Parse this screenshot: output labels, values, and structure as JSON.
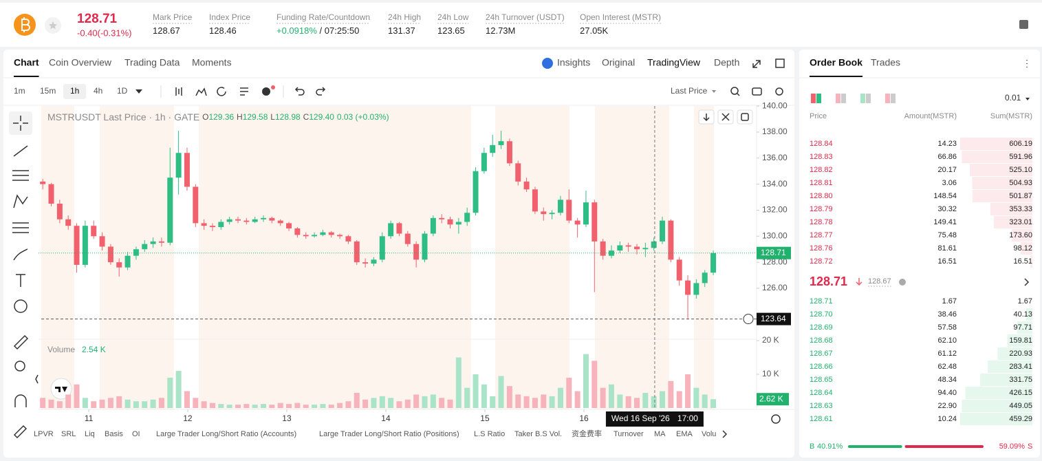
{
  "header": {
    "price": "128.71",
    "change": "-0.40(-0.31%)",
    "stats": [
      {
        "label": "Mark Price",
        "value": "128.67"
      },
      {
        "label": "Index Price",
        "value": "128.46"
      },
      {
        "label": "Funding Rate/Countdown",
        "value": "+0.0918%",
        "value2": "/ 07:25:50"
      },
      {
        "label": "24h High",
        "value": "131.37"
      },
      {
        "label": "24h Low",
        "value": "123.65"
      },
      {
        "label": "24h Turnover (USDT)",
        "value": "12.73M"
      },
      {
        "label": "Open Interest (MSTR)",
        "value": "27.05K"
      }
    ]
  },
  "tabs": [
    "Chart",
    "Coin Overview",
    "Trading Data",
    "Moments"
  ],
  "views": [
    "Insights",
    "Original",
    "TradingView",
    "Depth"
  ],
  "intervals": [
    "1m",
    "15m",
    "1h",
    "4h",
    "1D"
  ],
  "price_type": "Last Price",
  "indicators": [
    "LPVR",
    "SRL",
    "Liq",
    "Basis",
    "OI",
    "Large Trader Long/Short Ratio (Accounts)",
    "Large Trader Long/Short Ratio (Positions)",
    "L.S Ratio",
    "Taker B.S Vol.",
    "资金费率",
    "Turnover",
    "MA",
    "EMA",
    "Volu"
  ],
  "chart_data": {
    "type": "candlestick",
    "title": "MSTRUSDT Last Price · 1h · GATE",
    "legend": [
      {
        "k": "O",
        "v": "129.36"
      },
      {
        "k": "H",
        "v": "129.58"
      },
      {
        "k": "L",
        "v": "128.98"
      },
      {
        "k": "C",
        "v": "129.40"
      }
    ],
    "legend_change": "0.03 (+0.03%)",
    "up_color": "#2ebd85",
    "down_color": "#f0616d",
    "grid": false,
    "xlim": [
      0,
      84.6
    ],
    "xticks": [
      {
        "value": 5.92,
        "label": "11"
      },
      {
        "value": 17.58,
        "label": "12"
      },
      {
        "value": 29.25,
        "label": "13"
      },
      {
        "value": 40.92,
        "label": "14"
      },
      {
        "value": 52.59,
        "label": "15"
      },
      {
        "value": 64.26,
        "label": "16"
      }
    ],
    "ylim": [
      122.14,
      140.06
    ],
    "yticks": [
      {
        "value": 126,
        "label": "126.00"
      },
      {
        "value": 128,
        "label": "128.00"
      },
      {
        "value": 130,
        "label": "130.00"
      },
      {
        "value": 132,
        "label": "132.00"
      },
      {
        "value": 134,
        "label": "134.00"
      },
      {
        "value": 136,
        "label": "136.00"
      },
      {
        "value": 138,
        "label": "138.00"
      },
      {
        "value": 140,
        "label": "140.00"
      }
    ],
    "last_price": 128.71,
    "marker_price": 123.64,
    "crosshair": {
      "x": 72.6,
      "date": "Wed 16 Sep '26",
      "time": "17:00"
    },
    "volume_title": "Volume",
    "volume_legend": "2.54 K",
    "volume_last": {
      "value": 2620,
      "label": "2.62 K"
    },
    "vylim": [
      0,
      20000
    ],
    "vyticks": [
      {
        "value": 10000,
        "label": "10 K"
      },
      {
        "value": 20000,
        "label": "20 K"
      }
    ],
    "candles": [
      [
        134.2,
        134.4,
        133.6,
        134.0
      ],
      [
        134.0,
        134.1,
        132.3,
        132.5
      ],
      [
        132.5,
        132.8,
        131.0,
        131.3
      ],
      [
        131.3,
        131.6,
        130.5,
        130.8
      ],
      [
        130.8,
        131.0,
        127.2,
        127.8
      ],
      [
        127.8,
        131.2,
        127.6,
        130.8
      ],
      [
        130.8,
        131.2,
        129.8,
        130.0
      ],
      [
        130.0,
        130.3,
        128.9,
        129.2
      ],
      [
        129.2,
        129.4,
        127.8,
        128.0
      ],
      [
        128.0,
        128.3,
        126.9,
        127.6
      ],
      [
        127.6,
        128.8,
        127.4,
        128.5
      ],
      [
        128.5,
        129.2,
        128.2,
        129.0
      ],
      [
        129.0,
        129.7,
        128.8,
        129.4
      ],
      [
        129.4,
        129.9,
        129.1,
        129.6
      ],
      [
        129.6,
        129.9,
        129.2,
        129.5
      ],
      [
        129.5,
        136.8,
        129.3,
        134.5
      ],
      [
        134.5,
        138.1,
        133.2,
        136.4
      ],
      [
        136.4,
        136.8,
        133.5,
        133.8
      ],
      [
        133.8,
        134.0,
        130.7,
        131.0
      ],
      [
        131.0,
        131.3,
        130.5,
        130.8
      ],
      [
        130.8,
        131.0,
        130.4,
        130.7
      ],
      [
        130.7,
        131.3,
        130.5,
        131.1
      ],
      [
        131.1,
        131.5,
        130.9,
        131.3
      ],
      [
        131.3,
        131.5,
        131.0,
        131.2
      ],
      [
        131.2,
        131.4,
        130.9,
        131.1
      ],
      [
        131.1,
        131.5,
        131.0,
        131.3
      ],
      [
        131.3,
        131.6,
        131.1,
        131.4
      ],
      [
        131.4,
        131.5,
        131.0,
        131.2
      ],
      [
        131.2,
        131.3,
        130.8,
        131.0
      ],
      [
        131.0,
        131.1,
        130.4,
        130.6
      ],
      [
        130.6,
        130.7,
        129.9,
        130.1
      ],
      [
        130.1,
        130.3,
        129.8,
        130.0
      ],
      [
        130.0,
        130.3,
        129.9,
        130.1
      ],
      [
        130.1,
        130.5,
        130.0,
        130.3
      ],
      [
        130.3,
        130.4,
        129.9,
        130.1
      ],
      [
        130.1,
        130.2,
        129.8,
        130.0
      ],
      [
        130.0,
        130.1,
        129.4,
        129.6
      ],
      [
        129.6,
        129.7,
        127.8,
        128.0
      ],
      [
        128.0,
        128.3,
        127.6,
        127.9
      ],
      [
        127.9,
        128.4,
        127.7,
        128.2
      ],
      [
        128.2,
        130.3,
        128.0,
        130.0
      ],
      [
        130.0,
        131.2,
        129.8,
        131.0
      ],
      [
        131.0,
        131.1,
        130.0,
        130.2
      ],
      [
        130.2,
        130.4,
        129.2,
        129.4
      ],
      [
        129.4,
        129.6,
        127.6,
        128.2
      ],
      [
        128.2,
        130.4,
        128.0,
        130.2
      ],
      [
        130.2,
        131.6,
        130.0,
        131.4
      ],
      [
        131.4,
        131.7,
        131.0,
        131.3
      ],
      [
        131.3,
        131.5,
        130.6,
        130.9
      ],
      [
        130.9,
        131.4,
        130.2,
        131.1
      ],
      [
        131.1,
        132.2,
        130.8,
        131.8
      ],
      [
        131.8,
        135.3,
        131.6,
        135.0
      ],
      [
        135.0,
        136.8,
        134.8,
        136.4
      ],
      [
        136.4,
        137.8,
        136.1,
        137.0
      ],
      [
        137.0,
        138.1,
        136.7,
        137.3
      ],
      [
        137.3,
        137.5,
        135.4,
        135.6
      ],
      [
        135.6,
        135.8,
        133.9,
        134.2
      ],
      [
        134.2,
        134.5,
        133.4,
        133.6
      ],
      [
        133.6,
        133.8,
        131.7,
        131.9
      ],
      [
        131.9,
        132.2,
        131.2,
        131.7
      ],
      [
        131.7,
        132.0,
        131.3,
        131.8
      ],
      [
        131.8,
        133.1,
        131.6,
        132.8
      ],
      [
        132.8,
        133.6,
        131.0,
        131.2
      ],
      [
        131.2,
        131.4,
        129.9,
        130.9
      ],
      [
        130.9,
        133.5,
        130.7,
        132.6
      ],
      [
        132.6,
        132.8,
        125.7,
        129.6
      ],
      [
        129.6,
        129.8,
        128.2,
        128.5
      ],
      [
        128.5,
        129.3,
        128.3,
        128.9
      ],
      [
        128.9,
        129.6,
        128.7,
        129.3
      ],
      [
        129.3,
        129.5,
        128.8,
        129.2
      ],
      [
        129.2,
        129.4,
        128.6,
        129.0
      ],
      [
        129.0,
        129.5,
        128.4,
        129.1
      ],
      [
        129.1,
        129.9,
        128.9,
        129.6
      ],
      [
        129.6,
        131.5,
        129.4,
        131.2
      ],
      [
        131.2,
        131.3,
        128.0,
        128.2
      ],
      [
        128.2,
        128.4,
        126.2,
        126.6
      ],
      [
        126.6,
        127.0,
        123.64,
        125.5
      ],
      [
        125.5,
        126.7,
        125.2,
        126.4
      ],
      [
        126.4,
        127.4,
        126.1,
        127.2
      ],
      [
        127.2,
        128.9,
        127.0,
        128.71
      ]
    ],
    "volume": [
      3000,
      2500,
      2000,
      4000,
      7000,
      3000,
      2000,
      2500,
      3000,
      3500,
      2500,
      2000,
      2000,
      2500,
      3000,
      9000,
      11000,
      5000,
      3000,
      2000,
      1500,
      1200,
      1000,
      1000,
      1200,
      1000,
      1200,
      1000,
      1500,
      1200,
      1500,
      1000,
      1000,
      1200,
      1000,
      1500,
      2000,
      4500,
      2500,
      3000,
      3500,
      3000,
      2000,
      2500,
      4000,
      3500,
      4000,
      3000,
      2500,
      15000,
      6000,
      10000,
      7000,
      3500,
      9500,
      6500,
      4000,
      3500,
      3000,
      4000,
      3500,
      6000,
      9000,
      5000,
      16000,
      14000,
      6000,
      7000,
      4000,
      3500,
      3000,
      4500,
      3500,
      5000,
      8000,
      5000,
      10000,
      6000,
      4000,
      2620
    ]
  },
  "order_book": {
    "tabs": [
      "Order Book",
      "Trades"
    ],
    "tick": "0.01",
    "headers": [
      "Price",
      "Amount(MSTR)",
      "Sum(MSTR)"
    ],
    "asks": [
      [
        "128.84",
        "14.23",
        "606.19"
      ],
      [
        "128.83",
        "66.86",
        "591.96"
      ],
      [
        "128.82",
        "20.17",
        "525.10"
      ],
      [
        "128.81",
        "3.06",
        "504.93"
      ],
      [
        "128.80",
        "148.54",
        "501.87"
      ],
      [
        "128.79",
        "30.32",
        "353.33"
      ],
      [
        "128.78",
        "149.41",
        "323.01"
      ],
      [
        "128.77",
        "75.48",
        "173.60"
      ],
      [
        "128.76",
        "81.61",
        "98.12"
      ],
      [
        "128.72",
        "16.51",
        "16.51"
      ]
    ],
    "mid_price": "128.71",
    "mark": "128.67",
    "bids": [
      [
        "128.71",
        "1.67",
        "1.67"
      ],
      [
        "128.70",
        "38.46",
        "40.13"
      ],
      [
        "128.69",
        "57.58",
        "97.71"
      ],
      [
        "128.68",
        "62.10",
        "159.81"
      ],
      [
        "128.67",
        "61.12",
        "220.93"
      ],
      [
        "128.66",
        "62.48",
        "283.41"
      ],
      [
        "128.65",
        "48.34",
        "331.75"
      ],
      [
        "128.64",
        "94.40",
        "426.15"
      ],
      [
        "128.63",
        "22.90",
        "449.05"
      ],
      [
        "128.61",
        "10.24",
        "459.29"
      ]
    ],
    "buy_label": "B",
    "buy": "40.91%",
    "sell": "59.09%",
    "sell_label": "S"
  }
}
